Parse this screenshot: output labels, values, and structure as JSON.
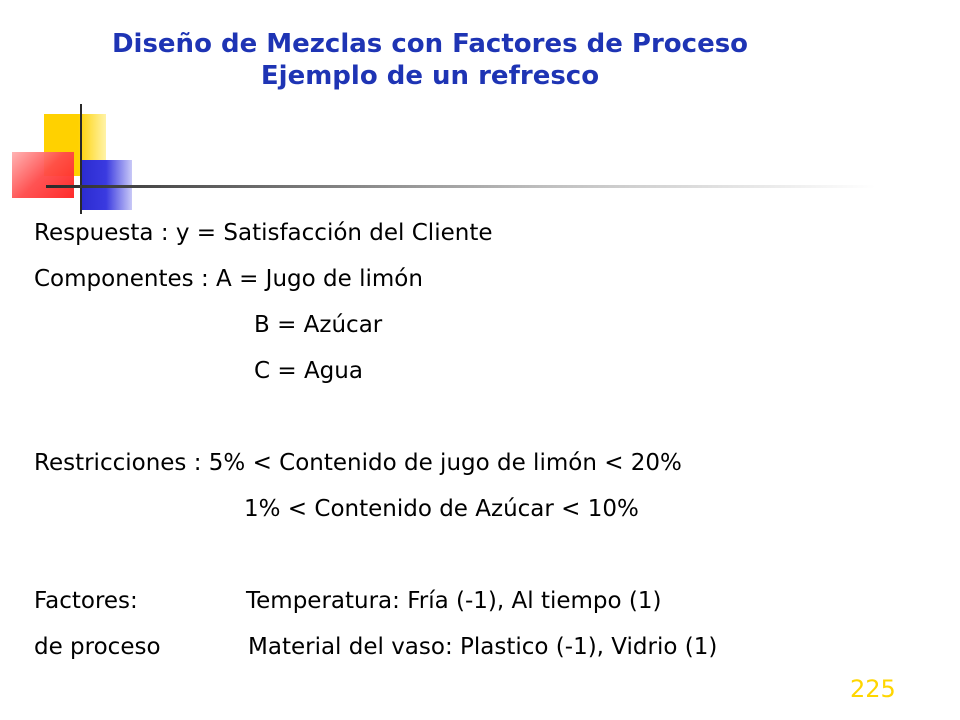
{
  "title": {
    "line1": "Diseño de Mezclas con Factores de Proceso",
    "line2": "Ejemplo de un refresco"
  },
  "body": {
    "respuesta": "Respuesta : y = Satisfacción del Cliente",
    "componentes": "Componentes : A = Jugo de limón",
    "comp_b": "B = Azúcar",
    "comp_c": "C = Agua",
    "restricciones": "Restricciones : 5% < Contenido de jugo de limón < 20%",
    "restr_2": "1% < Contenido de Azúcar < 10%",
    "factores_label": "Factores:",
    "factores_1": "Temperatura: Fría (-1), Al tiempo (1)",
    "proceso_label": "de proceso",
    "factores_2": "Material del vaso: Plastico (-1), Vidrio (1)"
  },
  "page_number": "225",
  "colors": {
    "title": "#1e34b4",
    "page_number": "#ffd600",
    "deco_yellow": "#ffd100",
    "deco_blue": "#2b2bd0",
    "deco_red": "#ff2020"
  }
}
